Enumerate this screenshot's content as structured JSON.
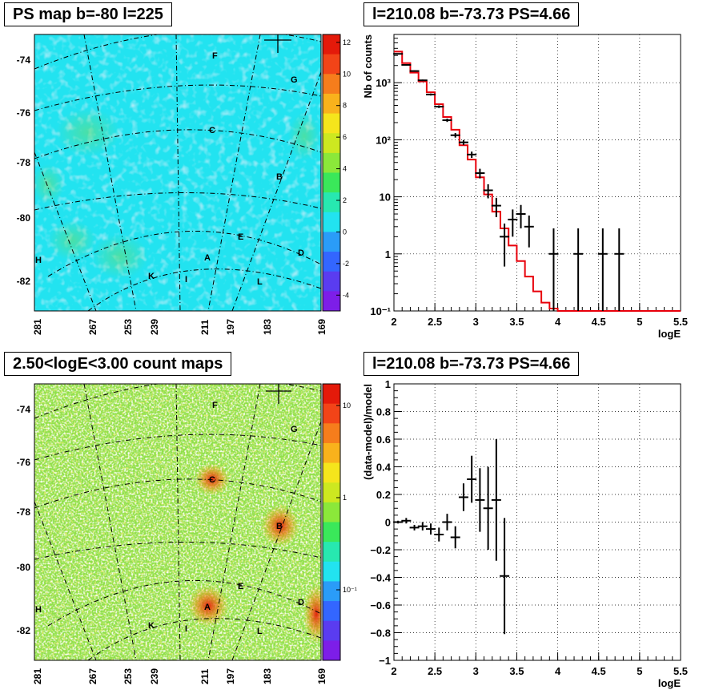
{
  "panels": {
    "ps_map": {
      "title": "PS map b=-80 l=225",
      "colorbar_ticks": [
        "12",
        "10",
        "8",
        "6",
        "4",
        "2",
        "0",
        "-2",
        "-4"
      ],
      "colorbar_values": [
        12,
        10,
        8,
        6,
        4,
        2,
        0,
        -2,
        -4
      ],
      "colorbar_range": [
        -5,
        12.5
      ]
    },
    "count_map": {
      "title": "2.50<logE<3.00 count maps",
      "colorbar_ticks": [
        "10",
        "1",
        "10⁻¹"
      ]
    },
    "spectrum": {
      "title": "l=210.08 b=-73.73 PS=4.66"
    },
    "residual": {
      "title": "l=210.08 b=-73.73 PS=4.66"
    }
  },
  "map_axes": {
    "y_ticks": [
      "-74",
      "-76",
      "-78",
      "-80",
      "-82"
    ],
    "x_ticks": [
      "281",
      "267",
      "253",
      "239",
      "211",
      "197",
      "183",
      "169"
    ],
    "source_labels": [
      "F",
      "G",
      "C",
      "B",
      "E",
      "D",
      "A",
      "H",
      "K",
      "I",
      "L"
    ]
  },
  "chart_data": [
    {
      "type": "line",
      "title": "l=210.08 b=-73.73 PS=4.66",
      "xlabel": "logE",
      "ylabel": "Nb of counts",
      "yscale": "log",
      "xlim": [
        2,
        5.5
      ],
      "ylim": [
        0.1,
        7000
      ],
      "x_tick_labels": [
        "2",
        "2.5",
        "3",
        "3.5",
        "4",
        "4.5",
        "5",
        "5.5"
      ],
      "y_tick_labels": [
        "10⁻¹",
        "1",
        "10",
        "10²",
        "10³"
      ],
      "grid": true,
      "series": [
        {
          "kind": "data",
          "x": [
            2.05,
            2.15,
            2.25,
            2.35,
            2.45,
            2.55,
            2.65,
            2.75,
            2.85,
            2.95,
            3.05,
            3.15,
            3.25,
            3.35,
            3.45,
            3.55,
            3.65,
            3.95,
            4.25,
            4.55,
            4.75
          ],
          "y": [
            3200,
            2050,
            1600,
            1100,
            620,
            380,
            220,
            120,
            90,
            55,
            26,
            13,
            7,
            2,
            4,
            5,
            3,
            1,
            1,
            1,
            1
          ],
          "err_lo": [
            60,
            45,
            40,
            33,
            25,
            20,
            15,
            11,
            9,
            7,
            5,
            3.6,
            2.6,
            1.4,
            2,
            2.2,
            1.7,
            0.99,
            0.99,
            0.99,
            0.99
          ],
          "err_hi": [
            60,
            45,
            40,
            33,
            25,
            20,
            15,
            11,
            9,
            7,
            5,
            3.6,
            2.6,
            1.4,
            2,
            2.2,
            1.7,
            1.8,
            1.8,
            1.8,
            1.8
          ],
          "color": "#000000"
        },
        {
          "kind": "model",
          "bin_edges": [
            2.0,
            2.1,
            2.2,
            2.3,
            2.4,
            2.5,
            2.6,
            2.7,
            2.8,
            2.9,
            3.0,
            3.1,
            3.2,
            3.3,
            3.4,
            3.5,
            3.6,
            3.7,
            3.8,
            3.9,
            4.0,
            5.5
          ],
          "values": [
            3500,
            2200,
            1500,
            1050,
            680,
            420,
            250,
            150,
            80,
            45,
            22,
            11,
            5.5,
            2.8,
            1.4,
            0.75,
            0.4,
            0.22,
            0.14,
            0.11,
            0.1
          ],
          "color": "#e8000b"
        }
      ]
    },
    {
      "type": "scatter",
      "title": "l=210.08 b=-73.73 PS=4.66",
      "xlabel": "logE",
      "ylabel": "(data-model)/model",
      "xlim": [
        2,
        5.5
      ],
      "ylim": [
        -1,
        1
      ],
      "x_tick_labels": [
        "2",
        "2.5",
        "3",
        "3.5",
        "4",
        "4.5",
        "5",
        "5.5"
      ],
      "y_tick_labels": [
        "1",
        "0.8",
        "0.6",
        "0.4",
        "0.2",
        "0",
        "−0.2",
        "−0.4",
        "−0.6",
        "−0.8",
        "−1"
      ],
      "y_tick_values": [
        1,
        0.8,
        0.6,
        0.4,
        0.2,
        0,
        -0.2,
        -0.4,
        -0.6,
        -0.8,
        -1
      ],
      "grid": true,
      "series": [
        {
          "kind": "residual",
          "x": [
            2.05,
            2.15,
            2.25,
            2.35,
            2.45,
            2.55,
            2.65,
            2.75,
            2.85,
            2.95,
            3.05,
            3.15,
            3.25,
            3.35
          ],
          "y": [
            0.0,
            0.01,
            -0.04,
            -0.03,
            -0.05,
            -0.09,
            0.0,
            -0.11,
            0.18,
            0.31,
            0.16,
            0.1,
            0.16,
            -0.39
          ],
          "err": [
            0.01,
            0.02,
            0.02,
            0.03,
            0.04,
            0.05,
            0.06,
            0.08,
            0.1,
            0.17,
            0.23,
            0.3,
            0.44,
            0.42
          ],
          "color": "#000000"
        }
      ]
    }
  ]
}
